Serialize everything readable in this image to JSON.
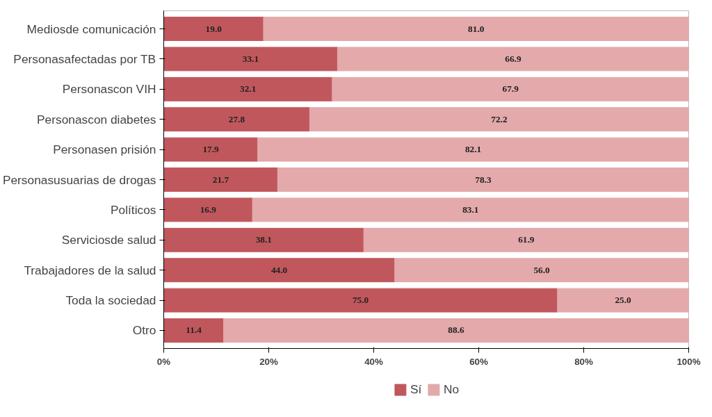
{
  "chart_data": {
    "type": "bar",
    "orientation": "horizontal",
    "stacked": true,
    "legend": "bottom",
    "categories": [
      "Mediosde comunicación",
      "Personasafectadas por TB",
      "Personascon VIH",
      "Personascon diabetes",
      "Personasen prisión",
      "Personasusuarias de drogas",
      "Políticos",
      "Serviciosde salud",
      "Trabajadores de la salud",
      "Toda la sociedad",
      "Otro"
    ],
    "series": [
      {
        "name": "Sí",
        "color": "#c0575c",
        "values": [
          19.0,
          33.1,
          32.1,
          27.8,
          17.9,
          21.7,
          16.9,
          38.1,
          44.0,
          75.0,
          11.4
        ],
        "value_labels": [
          "19.0",
          "33.1",
          "32.1",
          "27.8",
          "17.9",
          "21.7",
          "16.9",
          "38.1",
          "44.0",
          "75.0",
          "11.4"
        ]
      },
      {
        "name": "No",
        "color": "#e3a9ab",
        "values": [
          81.0,
          66.9,
          67.9,
          72.2,
          82.1,
          78.3,
          83.1,
          61.9,
          56.0,
          25.0,
          88.6
        ],
        "value_labels": [
          "81.0",
          "66.9",
          "67.9",
          "72.2",
          "82.1",
          "78.3",
          "83.1",
          "61.9",
          "56.0",
          "25.0",
          "88.6"
        ]
      }
    ],
    "xlim": [
      0,
      100
    ],
    "xticks": [
      {
        "value": 0,
        "label": "0%"
      },
      {
        "value": 20,
        "label": "20%"
      },
      {
        "value": 40,
        "label": "40%"
      },
      {
        "value": 60,
        "label": "60%"
      },
      {
        "value": 80,
        "label": "80%"
      },
      {
        "value": 100,
        "label": "100%"
      }
    ]
  }
}
